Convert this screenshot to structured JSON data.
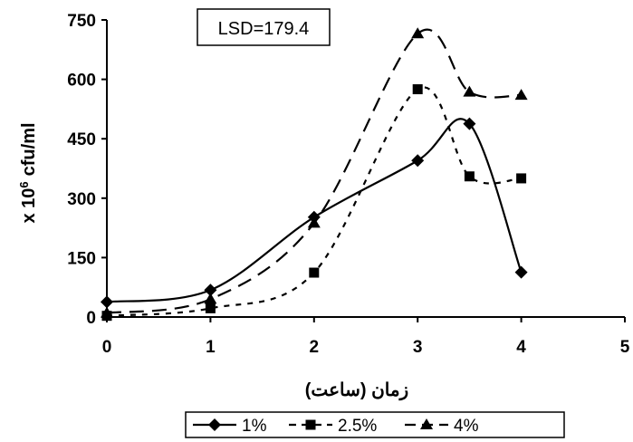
{
  "chart_data": {
    "type": "line",
    "title": "",
    "xlabel": "زمان (ساعت)",
    "ylabel_prefix": "x 10",
    "ylabel_exponent": "6",
    "ylabel_unit": "cfu/ml",
    "xlim": [
      0,
      5
    ],
    "ylim": [
      0,
      750
    ],
    "xticks": [
      0,
      1,
      2,
      3,
      4,
      5
    ],
    "yticks": [
      0,
      150,
      300,
      450,
      600,
      750
    ],
    "xtick_labels": [
      "0",
      "1",
      "2",
      "3",
      "4",
      "5"
    ],
    "ytick_labels": [
      "0",
      "150",
      "300",
      "450",
      "600",
      "750"
    ],
    "grid": false,
    "annotation": "LSD=179.4",
    "legend_position": "bottom",
    "series": [
      {
        "name": "1%",
        "marker": "diamond",
        "line_style": "solid",
        "color": "#000000",
        "points": [
          [
            0,
            38
          ],
          [
            1,
            68
          ],
          [
            2,
            252
          ],
          [
            3,
            395
          ],
          [
            3.5,
            488
          ],
          [
            4,
            113
          ]
        ]
      },
      {
        "name": "2.5%",
        "marker": "square",
        "line_style": "dotted",
        "color": "#000000",
        "points": [
          [
            0,
            3
          ],
          [
            1,
            22
          ],
          [
            2,
            112
          ],
          [
            3,
            575
          ],
          [
            3.5,
            355
          ],
          [
            4,
            350
          ]
        ]
      },
      {
        "name": "4%",
        "marker": "triangle",
        "line_style": "dashed",
        "color": "#000000",
        "points": [
          [
            0,
            10
          ],
          [
            1,
            45
          ],
          [
            2,
            237
          ],
          [
            3,
            715
          ],
          [
            3.5,
            568
          ],
          [
            4,
            560
          ]
        ]
      }
    ]
  }
}
